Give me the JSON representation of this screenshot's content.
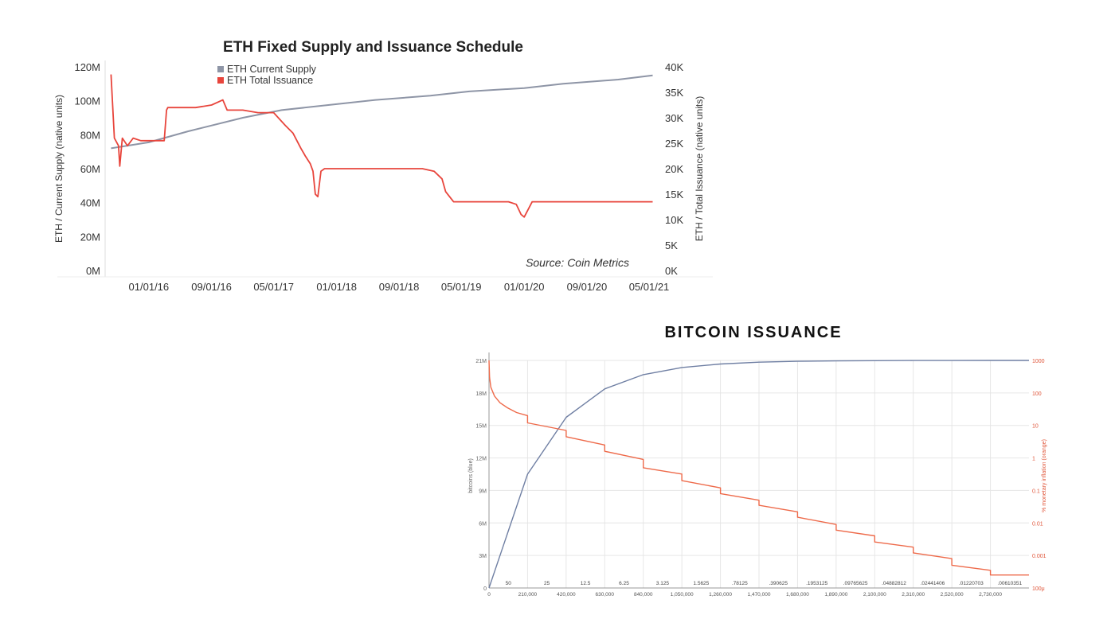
{
  "chart_data": [
    {
      "type": "line",
      "title": "ETH Fixed Supply and Issuance Schedule",
      "ylabel_left": "ETH / Current Supply (native units)",
      "ylabel_right": "ETH / Total Issuance (native units)",
      "source": "Source: Coin Metrics",
      "x_ticks": [
        "01/01/16",
        "09/01/16",
        "05/01/17",
        "01/01/18",
        "09/01/18",
        "05/01/19",
        "01/01/20",
        "09/01/20",
        "05/01/21"
      ],
      "y_left_ticks": [
        "0M",
        "20M",
        "40M",
        "60M",
        "80M",
        "100M",
        "120M"
      ],
      "y_right_ticks": [
        "0K",
        "5K",
        "10K",
        "15K",
        "20K",
        "25K",
        "30K",
        "35K",
        "40K"
      ],
      "ylim_left": [
        0,
        120000000
      ],
      "ylim_right": [
        0,
        40000
      ],
      "legend_position": "top-left",
      "series": [
        {
          "name": "ETH Current Supply",
          "axis": "left",
          "color": "#8e95a6",
          "x": [
            "2015-08-07",
            "2016-01-01",
            "2016-06-01",
            "2017-01-01",
            "2017-06-01",
            "2018-01-01",
            "2018-06-01",
            "2019-01-01",
            "2019-06-01",
            "2020-01-01",
            "2020-06-01",
            "2021-01-01",
            "2021-05-15"
          ],
          "values": [
            72000000,
            75500000,
            82000000,
            90000000,
            94500000,
            98000000,
            100500000,
            103000000,
            105500000,
            107500000,
            110000000,
            112500000,
            115000000
          ]
        },
        {
          "name": "ETH Total Issuance",
          "axis": "right",
          "color": "#e8453c",
          "x": [
            "2015-08-07",
            "2015-08-20",
            "2015-09-05",
            "2015-09-10",
            "2015-09-20",
            "2015-10-10",
            "2015-11-01",
            "2015-12-01",
            "2016-01-01",
            "2016-02-01",
            "2016-03-01",
            "2016-03-10",
            "2016-03-15",
            "2016-05-01",
            "2016-07-01",
            "2016-09-01",
            "2016-10-15",
            "2016-11-01",
            "2017-01-01",
            "2017-03-01",
            "2017-05-01",
            "2017-06-15",
            "2017-07-15",
            "2017-08-15",
            "2017-09-01",
            "2017-09-20",
            "2017-10-01",
            "2017-10-10",
            "2017-10-20",
            "2017-11-01",
            "2017-11-15",
            "2018-01-01",
            "2018-04-01",
            "2018-08-01",
            "2018-12-01",
            "2019-01-15",
            "2019-02-15",
            "2019-03-01",
            "2019-04-01",
            "2019-06-01",
            "2019-09-01",
            "2019-11-01",
            "2019-12-01",
            "2019-12-20",
            "2020-01-01",
            "2020-02-01",
            "2020-05-01",
            "2020-09-01",
            "2021-01-01",
            "2021-05-15"
          ],
          "values": [
            38500,
            26000,
            24500,
            20500,
            26000,
            24500,
            26000,
            25500,
            25500,
            25500,
            25500,
            31500,
            32000,
            32000,
            32000,
            32500,
            33500,
            31500,
            31500,
            31000,
            31000,
            28500,
            27000,
            24000,
            22500,
            21000,
            19500,
            15000,
            14500,
            19500,
            20000,
            20000,
            20000,
            20000,
            20000,
            19500,
            18000,
            15500,
            13500,
            13500,
            13500,
            13500,
            13000,
            11000,
            10500,
            13500,
            13500,
            13500,
            13500,
            13500
          ]
        }
      ]
    },
    {
      "type": "line",
      "title": "BITCOIN ISSUANCE",
      "ylabel_left": "bitcoins (blue)",
      "ylabel_right": "% monetary inflation (orange)",
      "x_ticks": [
        "0",
        "210,000",
        "420,000",
        "630,000",
        "840,000",
        "1,050,000",
        "1,260,000",
        "1,470,000",
        "1,680,000",
        "1,890,000",
        "2,100,000",
        "2,310,000",
        "2,520,000",
        "2,730,000"
      ],
      "y_left_ticks": [
        "0",
        "3M",
        "6M",
        "9M",
        "12M",
        "15M",
        "18M",
        "21M"
      ],
      "y_right_ticks": [
        "100μ",
        "0.001",
        "0.01",
        "0.1",
        "1",
        "10",
        "100",
        "1000"
      ],
      "y_right_scale": "log",
      "xlim": [
        0,
        2940000
      ],
      "ylim_left": [
        0,
        21000000
      ],
      "ylim_right": [
        0.0001,
        1000
      ],
      "block_rewards": [
        "50",
        "25",
        "12.5",
        "6.25",
        "3.125",
        "1.5625",
        ".78125",
        ".390625",
        ".1953125",
        ".09765625",
        ".04882812",
        ".02441406",
        ".01220703",
        ".00610351"
      ],
      "series": [
        {
          "name": "",
          "axis": "left",
          "color": "#6f7fa3",
          "x": [
            0,
            210000,
            420000,
            630000,
            840000,
            1050000,
            1260000,
            1470000,
            1680000,
            1890000,
            2100000,
            2310000,
            2520000,
            2730000,
            2940000
          ],
          "values": [
            0,
            10500000,
            15750000,
            18375000,
            19687500,
            20343750,
            20671875,
            20835938,
            20917969,
            20958984,
            20979492,
            20989746,
            20994873,
            20997437,
            20998718
          ]
        },
        {
          "name": "",
          "axis": "right",
          "color": "#ee6a4a",
          "x": [
            0,
            3000,
            10000,
            30000,
            60000,
            100000,
            150000,
            210000,
            210000,
            420000,
            420000,
            630000,
            630000,
            840000,
            840000,
            1050000,
            1050000,
            1260000,
            1260000,
            1470000,
            1470000,
            1680000,
            1680000,
            1890000,
            1890000,
            2100000,
            2100000,
            2310000,
            2310000,
            2520000,
            2520000,
            2730000,
            2730000,
            2940000
          ],
          "values": [
            1000,
            300,
            150,
            80,
            50,
            35,
            25,
            20,
            12,
            7,
            4.5,
            2.5,
            1.6,
            0.9,
            0.5,
            0.32,
            0.2,
            0.12,
            0.08,
            0.05,
            0.035,
            0.022,
            0.015,
            0.009,
            0.006,
            0.004,
            0.0026,
            0.0018,
            0.0012,
            0.0008,
            0.0005,
            0.00035,
            0.00025,
            0.00025
          ]
        }
      ]
    }
  ]
}
